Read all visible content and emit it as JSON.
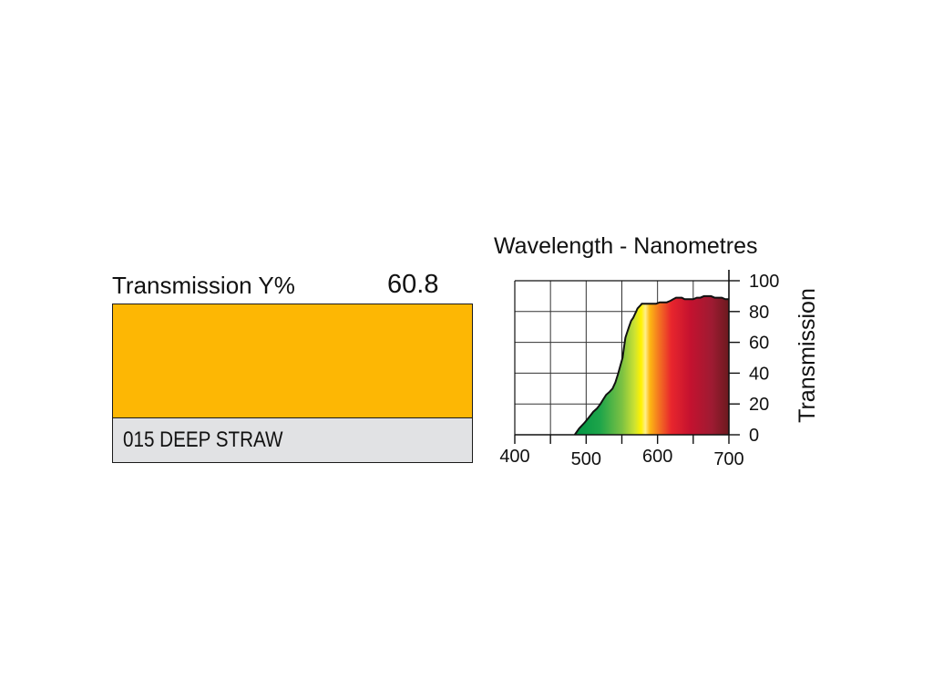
{
  "swatch": {
    "label": "Transmission Y%",
    "value": "60.8",
    "color": "#fdb704",
    "name": "015 DEEP STRAW",
    "name_bg": "#e1e2e4"
  },
  "chart_data": {
    "type": "area",
    "title": "Wavelength - Nanometres",
    "xlabel": "",
    "ylabel": "Transmission",
    "xlim": [
      400,
      700
    ],
    "ylim": [
      0,
      100
    ],
    "xticks": [
      400,
      500,
      600,
      700
    ],
    "yticks": [
      0,
      20,
      40,
      60,
      80,
      100
    ],
    "grid": true,
    "series": [
      {
        "x": [
          484,
          490,
          498,
          505,
          510,
          515,
          520,
          524,
          528,
          533,
          537,
          541,
          545,
          548,
          551,
          553,
          555,
          557,
          560,
          563,
          566,
          568,
          570,
          572,
          574,
          576,
          578,
          582,
          586,
          590,
          594,
          598,
          603,
          608,
          613,
          618,
          622,
          626,
          630,
          634,
          638,
          642,
          646,
          650,
          655,
          660,
          665,
          670,
          675,
          680,
          685,
          690,
          695,
          700
        ],
        "y": [
          0,
          4,
          8,
          12,
          15,
          17,
          20,
          23,
          26,
          28,
          30,
          34,
          40,
          45,
          50,
          57,
          63,
          66,
          70,
          74,
          76,
          78,
          80,
          82,
          83,
          84,
          85,
          85,
          85,
          85,
          85,
          85,
          86,
          86,
          86,
          87,
          88,
          89,
          89,
          89,
          88,
          88,
          88,
          88,
          89,
          89,
          90,
          90,
          90,
          89,
          89,
          89,
          88,
          88
        ]
      }
    ]
  }
}
